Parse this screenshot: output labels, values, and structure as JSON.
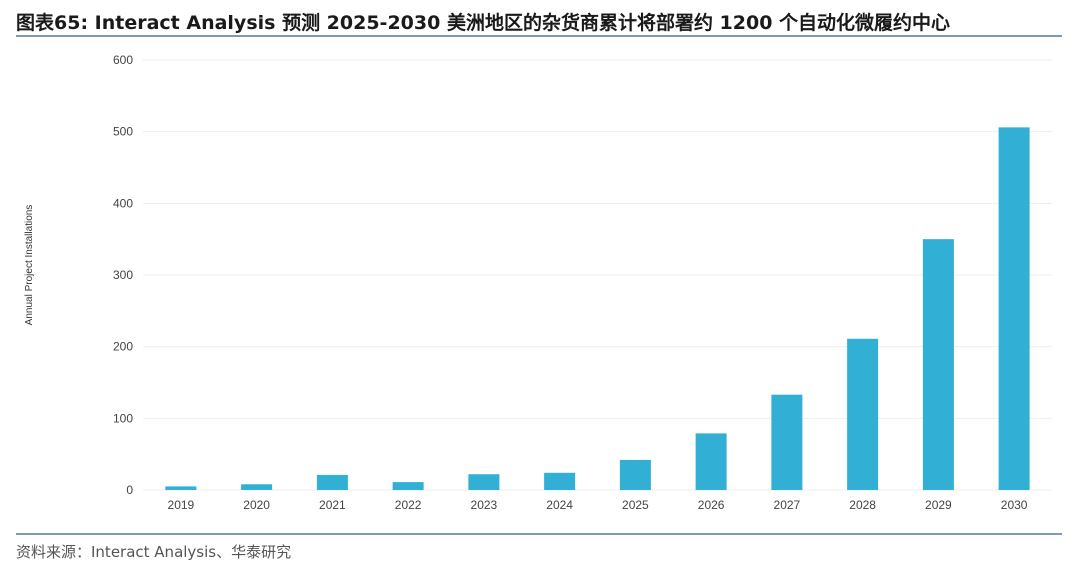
{
  "header": {
    "title": "图表65:  Interact Analysis 预测 2025-2030 美洲地区的杂货商累计将部署约 1200 个自动化微履约中心"
  },
  "footer": {
    "source": "资料来源：Interact Analysis、华泰研究"
  },
  "colors": {
    "bar": "#31afd4",
    "grid": "#eeeeee",
    "rule": "#8097b8"
  },
  "chart_data": {
    "type": "bar",
    "categories": [
      "2019",
      "2020",
      "2021",
      "2022",
      "2023",
      "2024",
      "2025",
      "2026",
      "2027",
      "2028",
      "2029",
      "2030"
    ],
    "values": [
      5,
      8,
      21,
      11,
      22,
      24,
      42,
      79,
      133,
      211,
      350,
      506
    ],
    "title": "",
    "xlabel": "",
    "ylabel": "Annual Project Installations",
    "ylim": [
      0,
      600
    ],
    "yticks": [
      0,
      100,
      200,
      300,
      400,
      500,
      600
    ],
    "grid": true,
    "legend": "none"
  }
}
